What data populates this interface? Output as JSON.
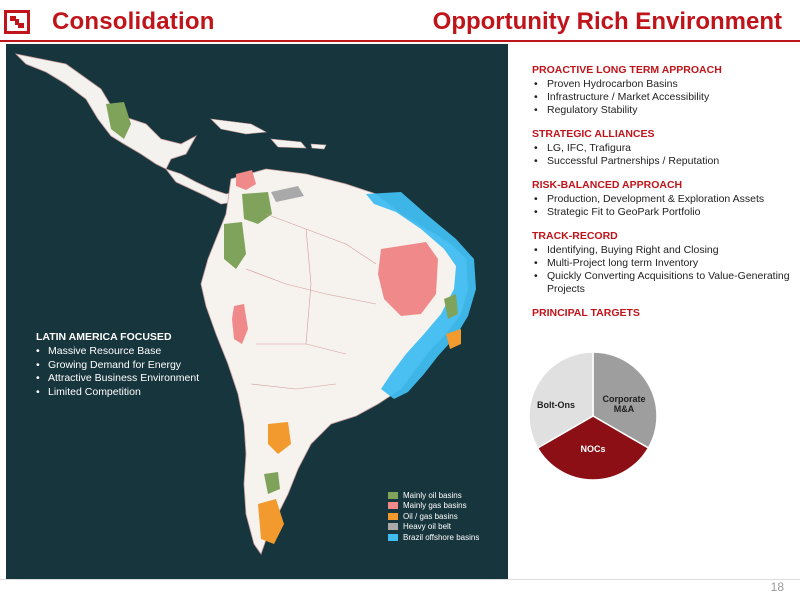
{
  "header": {
    "left_title": "Consolidation",
    "right_title": "Opportunity Rich Environment"
  },
  "map_callout": {
    "heading": "LATIN AMERICA FOCUSED",
    "items": [
      "Massive Resource Base",
      "Growing Demand for Energy",
      "Attractive Business Environment",
      "Limited Competition"
    ]
  },
  "legend": [
    {
      "label": "Mainly oil basins",
      "color": "#7fa35a"
    },
    {
      "label": "Mainly gas basins",
      "color": "#f08a8a"
    },
    {
      "label": "Oil / gas basins",
      "color": "#f29a2e"
    },
    {
      "label": "Heavy oil belt",
      "color": "#a9a9a9"
    },
    {
      "label": "Brazil offshore basins",
      "color": "#3fbdf0"
    }
  ],
  "sections": [
    {
      "heading": "PROACTIVE LONG TERM APPROACH",
      "items": [
        "Proven Hydrocarbon Basins",
        "Infrastructure / Market Accessibility",
        "Regulatory Stability"
      ]
    },
    {
      "heading": "STRATEGIC ALLIANCES",
      "items": [
        "LG, IFC, Trafigura",
        "Successful Partnerships / Reputation"
      ]
    },
    {
      "heading": "RISK-BALANCED APPROACH",
      "items": [
        "Production, Development & Exploration Assets",
        "Strategic Fit to GeoPark Portfolio"
      ]
    },
    {
      "heading": "TRACK-RECORD",
      "items": [
        "Identifying, Buying Right and Closing",
        "Multi-Project long term Inventory",
        "Quickly Converting Acquisitions to Value-Generating Projects"
      ]
    }
  ],
  "targets_heading": "PRINCIPAL TARGETS",
  "chart_data": {
    "type": "pie",
    "slices": [
      {
        "label": "Corporate M&A",
        "value": 33.3,
        "color": "#9e9e9e"
      },
      {
        "label": "NOCs",
        "value": 33.3,
        "color": "#8b0f14"
      },
      {
        "label": "Bolt-Ons",
        "value": 33.3,
        "color": "#e0e0e0"
      }
    ],
    "slice_labels": [
      "Corporate",
      "M&A",
      "NOCs",
      "Bolt-Ons"
    ]
  },
  "page_number": "18",
  "colors": {
    "brand_red": "#c0141b",
    "map_bg": "#17353c"
  }
}
